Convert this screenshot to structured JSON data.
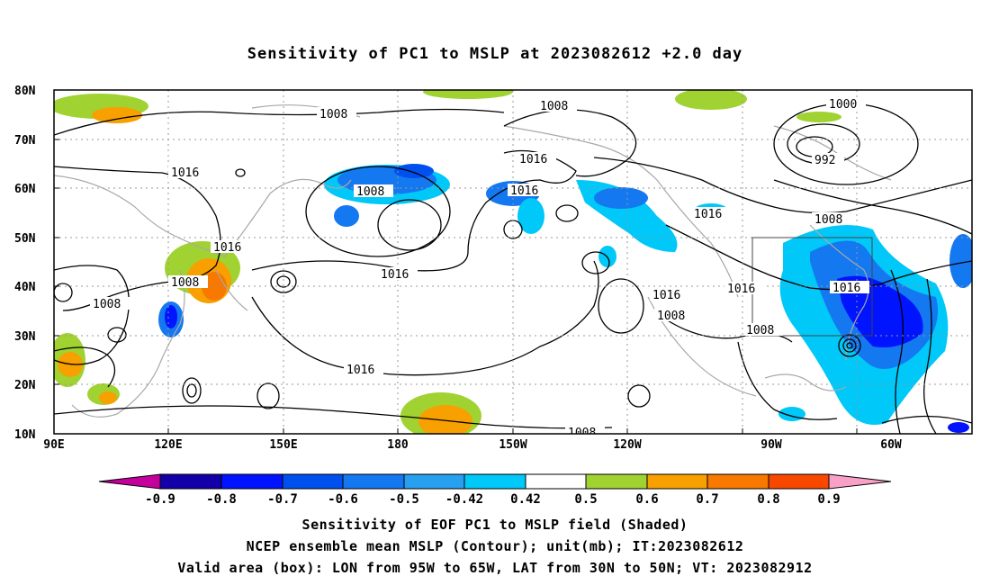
{
  "title": "Sensitivity of PC1 to MSLP at 2023082612 +2.0 day",
  "axes": {
    "lat_ticks": [
      "80N",
      "70N",
      "60N",
      "50N",
      "40N",
      "30N",
      "20N",
      "10N"
    ],
    "lon_ticks": [
      "90E",
      "120E",
      "150E",
      "180",
      "150W",
      "120W",
      "90W",
      "60W"
    ]
  },
  "contour_labels": {
    "c1008_a": "1008",
    "c1008_b": "1008",
    "c1008_c": "1008",
    "c1008_d": "1008",
    "c1008_e": "1008",
    "c1008_f": "1008",
    "c1008_g": "1008",
    "c1008_h": "1008",
    "c1016_a": "1016",
    "c1016_b": "1016",
    "c1016_c": "1016",
    "c1016_d": "1016",
    "c1016_e": "1016",
    "c1016_f": "1016",
    "c1016_g": "1016",
    "c1016_h": "1016",
    "c1016_i": "1016",
    "c1016_j": "1016",
    "c1000": "1000",
    "c992": "992"
  },
  "valid_box": {
    "lon_from": "95W",
    "lon_to": "65W",
    "lat_from": "30N",
    "lat_to": "50N"
  },
  "colorbar": {
    "labels": [
      "-0.9",
      "-0.8",
      "-0.7",
      "-0.6",
      "-0.5",
      "-0.42",
      "0.42",
      "0.5",
      "0.6",
      "0.7",
      "0.8",
      "0.9"
    ],
    "colors": [
      "#c4009c",
      "#1400a8",
      "#0014ff",
      "#0050f0",
      "#1478f0",
      "#28a0f0",
      "#00c8f8",
      "#ffffff",
      "#a0d232",
      "#f8a000",
      "#f87800",
      "#f84800",
      "#f81400",
      "#f8a0c8"
    ]
  },
  "captions": {
    "line1": "Sensitivity of EOF PC1 to MSLP field (Shaded)",
    "line2": "NCEP ensemble mean MSLP (Contour); unit(mb); IT:2023082612",
    "line3": "Valid area (box): LON from 95W to 65W, LAT from 30N to 50N; VT: 2023082912"
  }
}
